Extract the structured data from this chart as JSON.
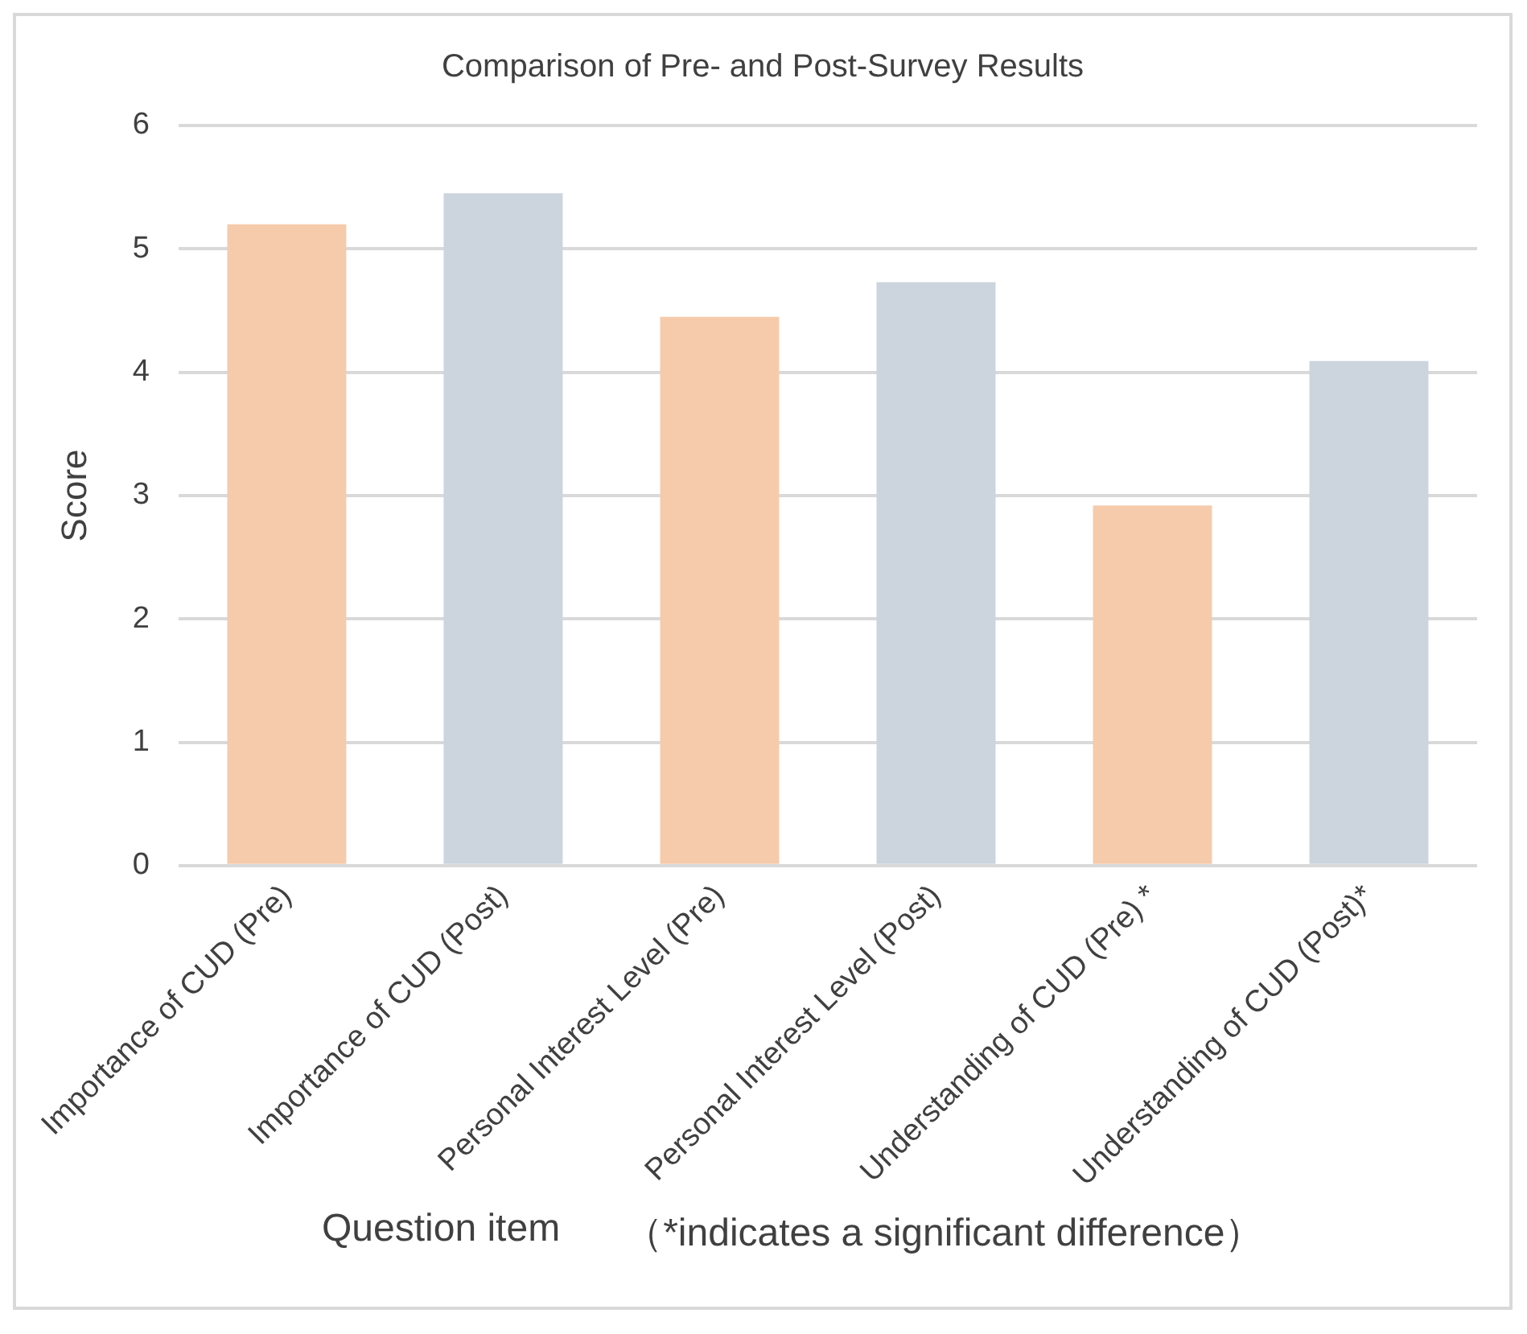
{
  "chart_data": {
    "type": "bar",
    "title": "Comparison of Pre- and Post-Survey Results",
    "xlabel": "Question item",
    "ylabel": "Score",
    "annotations": [
      "（*indicates a significant difference）"
    ],
    "categories": [
      "Importance of CUD (Pre)",
      "Importance of CUD (Post)",
      "Personal Interest Level (Pre)",
      "Personal Interest Level (Post)",
      "Understanding of CUD (Pre) *",
      "Understanding of CUD (Post)*"
    ],
    "values": [
      5.2,
      5.45,
      4.45,
      4.73,
      2.92,
      4.09
    ],
    "colors": [
      "#f5cbac",
      "#ccd4dd",
      "#f5cbac",
      "#ccd4dd",
      "#f5cbac",
      "#ccd4dd"
    ],
    "ylim": [
      0,
      6
    ],
    "yticks": [
      0,
      1,
      2,
      3,
      4,
      5,
      6
    ],
    "grid": "y",
    "legend": false
  }
}
